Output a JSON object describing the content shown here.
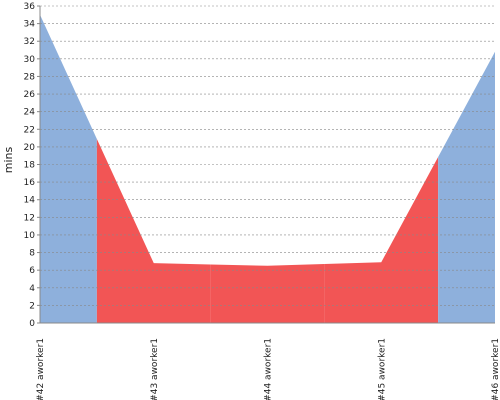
{
  "chart_data": {
    "type": "area",
    "y_label": "mins",
    "categories": [
      "#42 aworker1",
      "#43 aworker1",
      "#44 aworker1",
      "#45 aworker1",
      "#46 aworker1"
    ],
    "values": [
      35,
      6.8,
      6.5,
      6.9,
      30.8
    ],
    "colors": [
      "#8eb0dc",
      "#f25555",
      "#f25555",
      "#f25555",
      "#8eb0dc"
    ],
    "ylim": [
      0,
      36
    ],
    "yticks": [
      0,
      2,
      4,
      6,
      8,
      10,
      12,
      14,
      16,
      18,
      20,
      22,
      24,
      26,
      28,
      30,
      32,
      34,
      36
    ],
    "grid": true
  }
}
